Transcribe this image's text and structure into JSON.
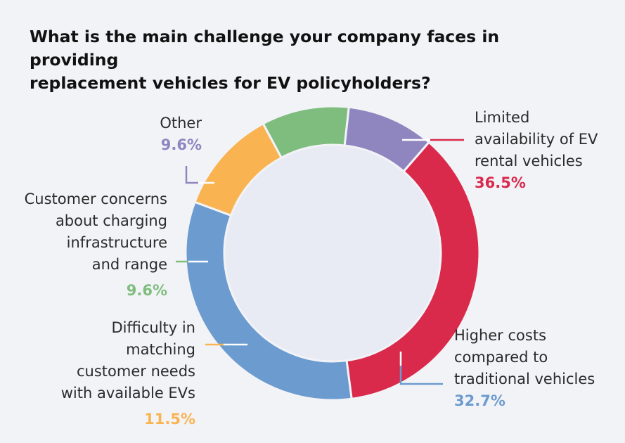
{
  "chart_data": {
    "type": "pie",
    "variant": "donut",
    "title_lines": [
      "What is the main challenge your company faces in providing",
      "replacement vehicles for EV policyholders?"
    ],
    "slices": [
      {
        "label_lines": [
          "Limited",
          "availability of EV",
          "rental vehicles"
        ],
        "value": 36.5,
        "display": "36.5%",
        "color": "#d92a4c"
      },
      {
        "label_lines": [
          "Higher costs",
          "compared to",
          "traditional vehicles"
        ],
        "value": 32.7,
        "display": "32.7%",
        "color": "#6b9bcf"
      },
      {
        "label_lines": [
          "Difficulty in",
          "matching",
          "customer needs",
          "with available EVs"
        ],
        "value": 11.5,
        "display": "11.5%",
        "color": "#f9b451"
      },
      {
        "label_lines": [
          "Customer concerns",
          "about charging",
          "infrastructure",
          "and range"
        ],
        "value": 9.6,
        "display": "9.6%",
        "color": "#7fbd7f"
      },
      {
        "label_lines": [
          "Other"
        ],
        "value": 9.6,
        "display": "9.6%",
        "color": "#8f86c0"
      }
    ],
    "start_angle_deg": 41,
    "center_fill": "#e9ebf4",
    "label_color": "#2b2b2b"
  }
}
